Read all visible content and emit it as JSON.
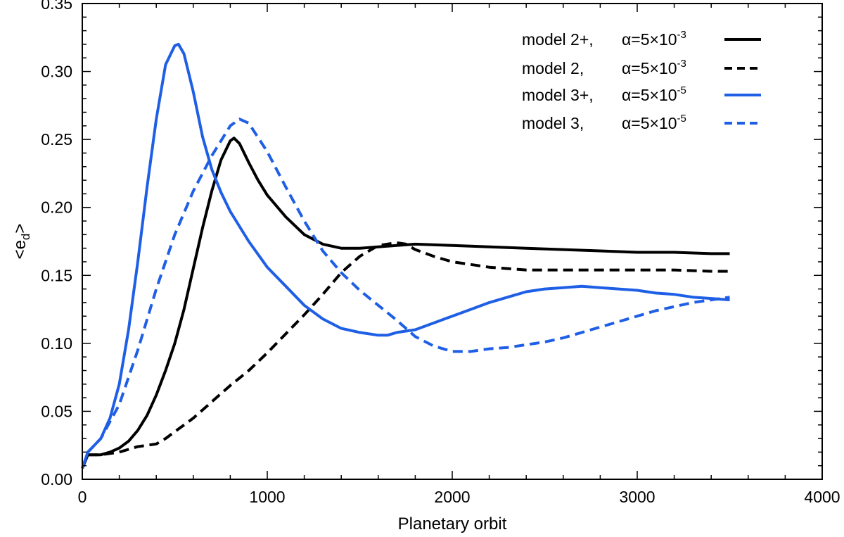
{
  "chart_data": {
    "type": "line",
    "title": "",
    "xlabel": "Planetary orbit",
    "ylabel_main": "<e",
    "ylabel_sub": "d",
    "ylabel_tail": ">",
    "xlim": [
      0,
      4000
    ],
    "ylim": [
      0.0,
      0.35
    ],
    "xticks": [
      0,
      1000,
      2000,
      3000,
      4000
    ],
    "xtick_labels": [
      "0",
      "1000",
      "2000",
      "3000",
      "4000"
    ],
    "yticks": [
      0.0,
      0.05,
      0.1,
      0.15,
      0.2,
      0.25,
      0.3,
      0.35
    ],
    "ytick_labels": [
      "0.00",
      "0.05",
      "0.10",
      "0.15",
      "0.20",
      "0.25",
      "0.30",
      "0.35"
    ],
    "grid": false,
    "legend_position": "top-right",
    "series": [
      {
        "name": "model 2+",
        "alpha_base": "α=5×10",
        "alpha_exp": "-3",
        "color": "#000000",
        "dash": "solid",
        "x": [
          0,
          30,
          100,
          150,
          200,
          250,
          300,
          350,
          400,
          450,
          500,
          550,
          600,
          650,
          700,
          750,
          800,
          820,
          850,
          900,
          950,
          1000,
          1100,
          1200,
          1300,
          1400,
          1500,
          1600,
          1700,
          1800,
          2000,
          2200,
          2400,
          2600,
          2800,
          3000,
          3200,
          3400,
          3500
        ],
        "values": [
          0.008,
          0.018,
          0.018,
          0.02,
          0.023,
          0.028,
          0.036,
          0.047,
          0.062,
          0.08,
          0.1,
          0.125,
          0.155,
          0.185,
          0.212,
          0.235,
          0.249,
          0.251,
          0.247,
          0.233,
          0.22,
          0.209,
          0.193,
          0.18,
          0.173,
          0.17,
          0.17,
          0.171,
          0.172,
          0.173,
          0.172,
          0.171,
          0.17,
          0.169,
          0.168,
          0.167,
          0.167,
          0.166,
          0.166
        ]
      },
      {
        "name": "model 2",
        "alpha_base": "α=5×10",
        "alpha_exp": "-3",
        "color": "#000000",
        "dash": "dashed",
        "x": [
          0,
          30,
          100,
          200,
          300,
          400,
          450,
          500,
          600,
          700,
          800,
          900,
          1000,
          1100,
          1200,
          1300,
          1400,
          1500,
          1600,
          1700,
          1750,
          1800,
          1900,
          2000,
          2100,
          2200,
          2400,
          2600,
          2800,
          3000,
          3200,
          3400,
          3500
        ],
        "values": [
          0.008,
          0.018,
          0.018,
          0.02,
          0.024,
          0.026,
          0.03,
          0.035,
          0.045,
          0.057,
          0.069,
          0.08,
          0.093,
          0.107,
          0.121,
          0.136,
          0.152,
          0.164,
          0.172,
          0.174,
          0.173,
          0.169,
          0.164,
          0.16,
          0.158,
          0.156,
          0.154,
          0.154,
          0.154,
          0.154,
          0.154,
          0.153,
          0.153
        ]
      },
      {
        "name": "model 3+",
        "alpha_base": "α=5×10",
        "alpha_exp": "-5",
        "color": "#1f5fe6",
        "dash": "solid",
        "x": [
          0,
          30,
          100,
          150,
          200,
          250,
          300,
          350,
          400,
          450,
          500,
          520,
          550,
          600,
          650,
          700,
          750,
          800,
          900,
          1000,
          1100,
          1200,
          1300,
          1400,
          1500,
          1600,
          1650,
          1700,
          1800,
          1900,
          2000,
          2100,
          2200,
          2300,
          2400,
          2500,
          2600,
          2700,
          2800,
          2900,
          3000,
          3100,
          3200,
          3300,
          3400,
          3500
        ],
        "values": [
          0.008,
          0.02,
          0.03,
          0.045,
          0.07,
          0.11,
          0.16,
          0.215,
          0.265,
          0.305,
          0.319,
          0.32,
          0.313,
          0.285,
          0.252,
          0.228,
          0.211,
          0.197,
          0.175,
          0.156,
          0.142,
          0.128,
          0.118,
          0.111,
          0.108,
          0.106,
          0.106,
          0.108,
          0.11,
          0.115,
          0.12,
          0.125,
          0.13,
          0.134,
          0.138,
          0.14,
          0.141,
          0.142,
          0.141,
          0.14,
          0.139,
          0.137,
          0.136,
          0.134,
          0.133,
          0.132
        ]
      },
      {
        "name": "model 3",
        "alpha_base": "α=5×10",
        "alpha_exp": "-5",
        "color": "#1f5fe6",
        "dash": "dashed",
        "x": [
          0,
          30,
          100,
          200,
          300,
          400,
          500,
          600,
          700,
          800,
          850,
          900,
          1000,
          1100,
          1200,
          1300,
          1400,
          1500,
          1600,
          1700,
          1800,
          1900,
          2000,
          2100,
          2200,
          2300,
          2400,
          2500,
          2600,
          2700,
          2800,
          2900,
          3000,
          3100,
          3200,
          3300,
          3400,
          3500
        ],
        "values": [
          0.008,
          0.02,
          0.03,
          0.055,
          0.095,
          0.14,
          0.18,
          0.212,
          0.238,
          0.26,
          0.265,
          0.262,
          0.241,
          0.215,
          0.19,
          0.168,
          0.152,
          0.139,
          0.128,
          0.117,
          0.105,
          0.098,
          0.094,
          0.094,
          0.096,
          0.097,
          0.099,
          0.101,
          0.104,
          0.108,
          0.112,
          0.116,
          0.12,
          0.124,
          0.127,
          0.13,
          0.132,
          0.134
        ]
      }
    ]
  }
}
